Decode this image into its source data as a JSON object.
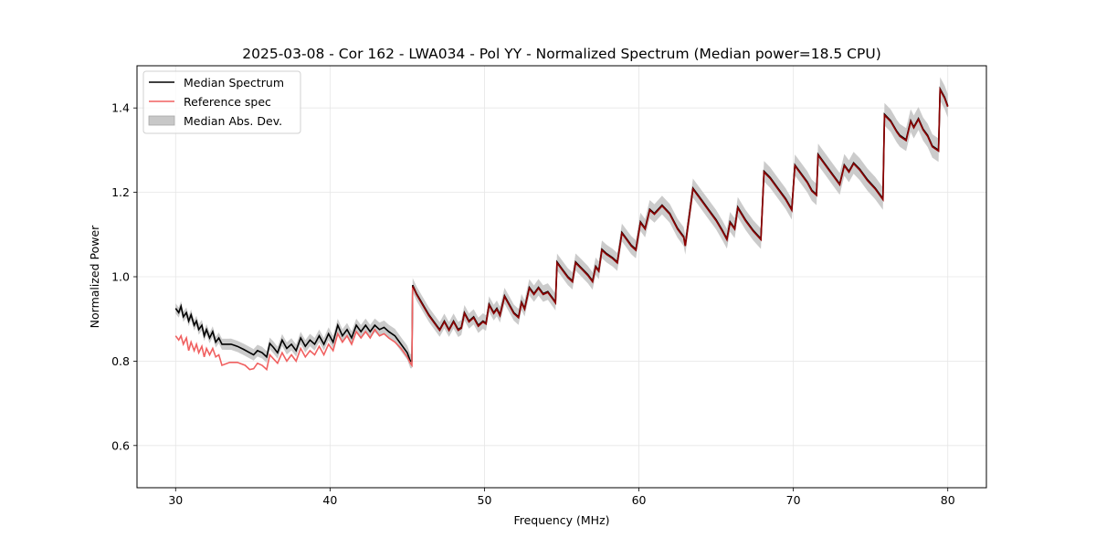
{
  "chart_data": {
    "type": "line",
    "title": "2025-03-08 - Cor 162 - LWA034 - Pol YY - Normalized Spectrum (Median power=18.5 CPU)",
    "xlabel": "Frequency (MHz)",
    "ylabel": "Normalized Power",
    "xlim": [
      27.5,
      82.5
    ],
    "ylim": [
      0.5,
      1.5
    ],
    "xticks": [
      30,
      40,
      50,
      60,
      70,
      80
    ],
    "xtick_labels": [
      "30",
      "40",
      "50",
      "60",
      "70",
      "80"
    ],
    "yticks": [
      0.6,
      0.8,
      1.0,
      1.2,
      1.4
    ],
    "ytick_labels": [
      "0.6",
      "0.8",
      "1.0",
      "1.2",
      "1.4"
    ],
    "grid": true,
    "legend_position": "top-left",
    "legend": [
      {
        "label": "Median Spectrum",
        "kind": "line",
        "color": "#000000"
      },
      {
        "label": "Reference spec",
        "kind": "line",
        "color": "#f06060"
      },
      {
        "label": "Median Abs. Dev.",
        "kind": "band",
        "color": "#c8c8c8"
      }
    ],
    "series": [
      {
        "name": "Median Spectrum",
        "color": "#000000",
        "x": [
          30.0,
          30.2,
          30.35,
          30.5,
          30.7,
          30.85,
          31.0,
          31.2,
          31.35,
          31.5,
          31.7,
          31.85,
          32.0,
          32.2,
          32.4,
          32.6,
          32.8,
          33.0,
          33.3,
          33.6,
          34.0,
          34.4,
          34.8,
          35.05,
          35.3,
          35.6,
          35.9,
          36.1,
          36.35,
          36.6,
          36.9,
          37.2,
          37.5,
          37.8,
          38.1,
          38.4,
          38.7,
          39.0,
          39.3,
          39.6,
          39.9,
          40.2,
          40.5,
          40.8,
          41.1,
          41.4,
          41.7,
          42.0,
          42.3,
          42.6,
          42.9,
          43.2,
          43.5,
          43.8,
          44.2,
          44.6,
          45.0,
          45.2,
          45.3,
          45.35,
          45.6,
          46.0,
          46.4,
          46.8,
          47.1,
          47.4,
          47.7,
          48.0,
          48.3,
          48.5,
          48.7,
          49.0,
          49.3,
          49.6,
          49.9,
          50.1,
          50.3,
          50.6,
          50.8,
          51.0,
          51.3,
          51.6,
          51.9,
          52.2,
          52.4,
          52.6,
          52.9,
          53.2,
          53.5,
          53.8,
          54.1,
          54.4,
          54.6,
          54.7,
          55.0,
          55.4,
          55.7,
          55.9,
          56.3,
          56.7,
          57.0,
          57.2,
          57.4,
          57.6,
          57.9,
          58.3,
          58.6,
          58.9,
          59.2,
          59.5,
          59.8,
          60.1,
          60.4,
          60.7,
          61.0,
          61.5,
          62.0,
          62.5,
          62.9,
          63.0,
          63.5,
          64.0,
          64.5,
          65.0,
          65.4,
          65.7,
          65.9,
          66.2,
          66.4,
          66.9,
          67.4,
          67.9,
          68.1,
          68.5,
          69.0,
          69.5,
          69.9,
          70.1,
          70.5,
          70.9,
          71.2,
          71.5,
          71.6,
          72.0,
          72.5,
          73.0,
          73.3,
          73.6,
          73.9,
          74.3,
          74.8,
          75.3,
          75.8,
          75.9,
          76.3,
          76.7,
          76.9,
          77.3,
          77.6,
          77.8,
          78.1,
          78.4,
          78.7,
          79.0,
          79.4,
          79.5,
          79.8,
          80.0
        ],
        "y": [
          0.925,
          0.915,
          0.93,
          0.905,
          0.915,
          0.895,
          0.91,
          0.885,
          0.895,
          0.875,
          0.885,
          0.86,
          0.875,
          0.855,
          0.87,
          0.845,
          0.855,
          0.84,
          0.84,
          0.84,
          0.835,
          0.828,
          0.82,
          0.815,
          0.825,
          0.82,
          0.81,
          0.842,
          0.832,
          0.82,
          0.85,
          0.83,
          0.84,
          0.825,
          0.855,
          0.835,
          0.85,
          0.84,
          0.86,
          0.84,
          0.865,
          0.845,
          0.885,
          0.86,
          0.875,
          0.855,
          0.885,
          0.87,
          0.885,
          0.87,
          0.885,
          0.875,
          0.88,
          0.87,
          0.86,
          0.84,
          0.82,
          0.8,
          0.8,
          0.98,
          0.96,
          0.935,
          0.91,
          0.89,
          0.875,
          0.895,
          0.875,
          0.895,
          0.875,
          0.88,
          0.915,
          0.895,
          0.905,
          0.885,
          0.895,
          0.89,
          0.935,
          0.915,
          0.925,
          0.91,
          0.955,
          0.935,
          0.915,
          0.905,
          0.94,
          0.925,
          0.975,
          0.96,
          0.975,
          0.96,
          0.965,
          0.95,
          0.94,
          1.035,
          1.02,
          1.0,
          0.99,
          1.035,
          1.02,
          1.005,
          0.99,
          1.025,
          1.015,
          1.065,
          1.055,
          1.045,
          1.035,
          1.105,
          1.09,
          1.075,
          1.065,
          1.13,
          1.115,
          1.16,
          1.15,
          1.17,
          1.15,
          1.115,
          1.095,
          1.075,
          1.21,
          1.185,
          1.16,
          1.135,
          1.11,
          1.09,
          1.13,
          1.115,
          1.165,
          1.135,
          1.11,
          1.09,
          1.25,
          1.235,
          1.21,
          1.185,
          1.16,
          1.265,
          1.245,
          1.225,
          1.205,
          1.195,
          1.29,
          1.27,
          1.245,
          1.22,
          1.265,
          1.25,
          1.27,
          1.255,
          1.23,
          1.21,
          1.185,
          1.385,
          1.37,
          1.345,
          1.335,
          1.325,
          1.37,
          1.355,
          1.375,
          1.35,
          1.335,
          1.31,
          1.3,
          1.445,
          1.425,
          1.405
        ]
      },
      {
        "name": "Reference spec",
        "color": "#f06060",
        "x": [
          30.0,
          30.2,
          30.35,
          30.5,
          30.7,
          30.85,
          31.0,
          31.2,
          31.35,
          31.5,
          31.7,
          31.85,
          32.0,
          32.2,
          32.4,
          32.6,
          32.8,
          33.0,
          33.5,
          34.0,
          34.5,
          34.8,
          35.05,
          35.3,
          35.6,
          35.9,
          36.1,
          36.35,
          36.6,
          36.9,
          37.2,
          37.5,
          37.8,
          38.1,
          38.4,
          38.7,
          39.0,
          39.3,
          39.6,
          39.9,
          40.2,
          40.5,
          40.8,
          41.1,
          41.4,
          41.7,
          42.0,
          42.3,
          42.6,
          42.9,
          43.2,
          43.5,
          43.8,
          44.2,
          44.6,
          45.0,
          45.2,
          45.3,
          45.35
        ],
        "y": [
          0.86,
          0.85,
          0.86,
          0.84,
          0.855,
          0.825,
          0.845,
          0.825,
          0.84,
          0.82,
          0.835,
          0.81,
          0.83,
          0.815,
          0.83,
          0.81,
          0.815,
          0.79,
          0.797,
          0.797,
          0.79,
          0.78,
          0.782,
          0.795,
          0.79,
          0.78,
          0.815,
          0.805,
          0.795,
          0.82,
          0.8,
          0.815,
          0.8,
          0.83,
          0.81,
          0.825,
          0.815,
          0.835,
          0.815,
          0.84,
          0.825,
          0.865,
          0.845,
          0.86,
          0.84,
          0.87,
          0.855,
          0.87,
          0.855,
          0.875,
          0.86,
          0.865,
          0.855,
          0.845,
          0.83,
          0.81,
          0.795,
          0.79,
          0.975
        ],
        "overlaps_median_above_mhz": 45.35
      }
    ],
    "mad_band": {
      "name": "Median Abs. Dev.",
      "color": "#c8c8c8",
      "half_width_low_freq": 0.012,
      "half_width_high_freq": 0.028,
      "note": "Shaded band around Median Spectrum; widens toward high frequency"
    }
  }
}
